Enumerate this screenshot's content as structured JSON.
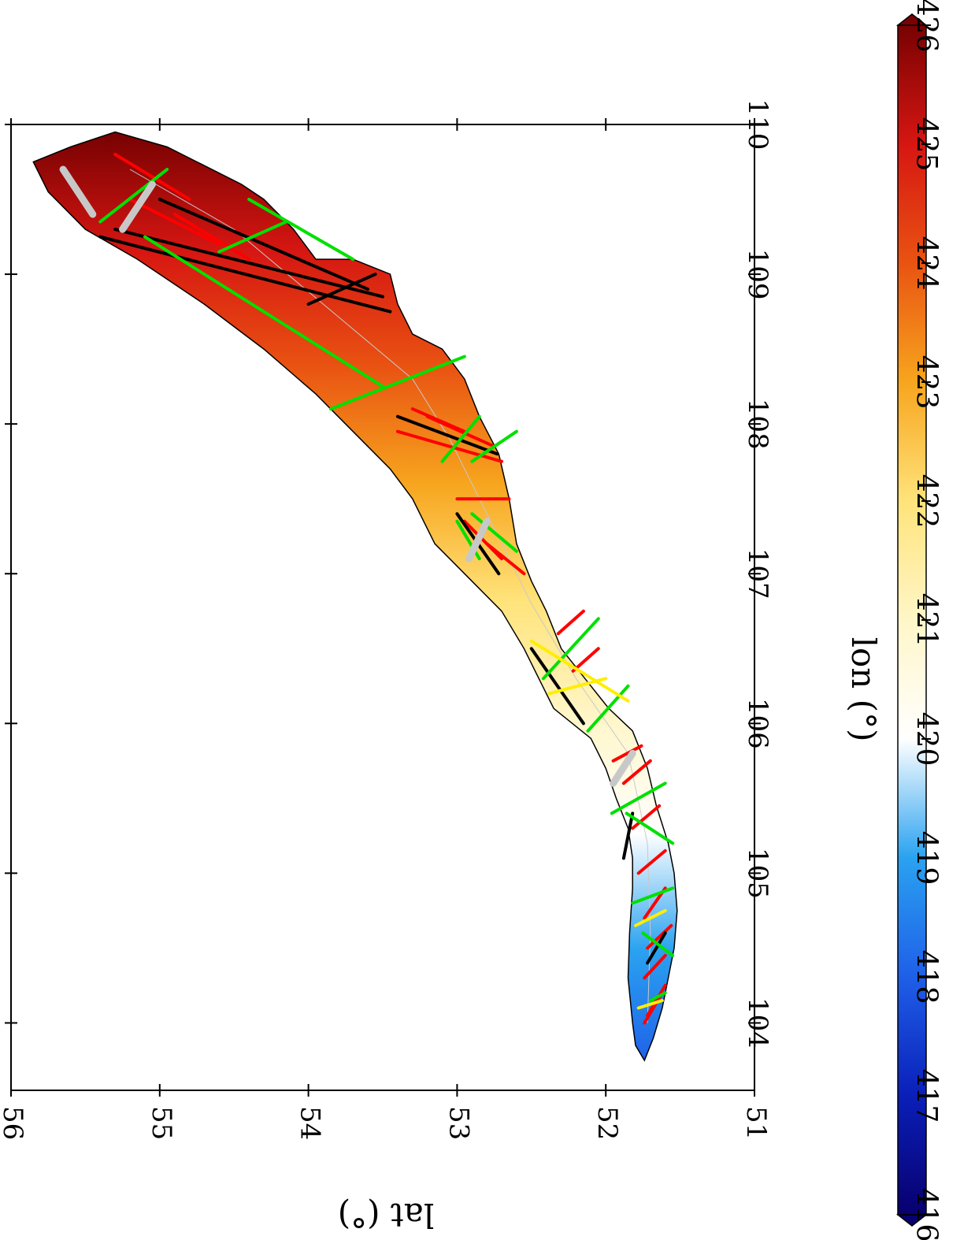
{
  "figure": {
    "x_axis_title": "lon (°)",
    "y_axis_title": "lat (°)"
  },
  "map_data": {
    "type": "map",
    "projection": "rotated 90° clockwise (longitude increases upward, latitude increases leftward)",
    "xlim": [
      103.55,
      110.0
    ],
    "ylim": [
      51.0,
      56.0
    ],
    "x_ticks": [
      "104",
      "105",
      "106",
      "107",
      "108",
      "109",
      "110"
    ],
    "y_ticks": [
      "51",
      "52",
      "53",
      "54",
      "55",
      "56"
    ],
    "colorbar": {
      "min": 416,
      "max": 426,
      "ticks": [
        "416",
        "417",
        "418",
        "419",
        "420",
        "421",
        "422",
        "423",
        "424",
        "425",
        "426"
      ],
      "extend": "both",
      "colormap": [
        "#08006e",
        "#0a1fb8",
        "#1f5fe8",
        "#2aa2f0",
        "#ffffff",
        "#fff6c8",
        "#ffe37a",
        "#f7a51e",
        "#e95312",
        "#d61612",
        "#780202"
      ]
    },
    "lake_outline": [
      [
        103.75,
        51.74
      ],
      [
        103.9,
        51.68
      ],
      [
        104.1,
        51.62
      ],
      [
        104.3,
        51.58
      ],
      [
        104.5,
        51.54
      ],
      [
        104.75,
        51.52
      ],
      [
        105.0,
        51.54
      ],
      [
        105.2,
        51.58
      ],
      [
        105.45,
        51.66
      ],
      [
        105.7,
        51.72
      ],
      [
        105.95,
        51.82
      ],
      [
        106.1,
        51.98
      ],
      [
        106.25,
        52.1
      ],
      [
        106.5,
        52.3
      ],
      [
        106.75,
        52.4
      ],
      [
        106.95,
        52.5
      ],
      [
        107.2,
        52.6
      ],
      [
        107.5,
        52.65
      ],
      [
        107.8,
        52.72
      ],
      [
        108.05,
        52.85
      ],
      [
        108.3,
        52.95
      ],
      [
        108.5,
        53.1
      ],
      [
        108.6,
        53.3
      ],
      [
        108.8,
        53.4
      ],
      [
        109.0,
        53.45
      ],
      [
        109.1,
        53.7
      ],
      [
        109.1,
        53.95
      ],
      [
        109.3,
        54.1
      ],
      [
        109.5,
        54.3
      ],
      [
        109.6,
        54.45
      ],
      [
        109.75,
        54.75
      ],
      [
        109.85,
        54.95
      ],
      [
        109.95,
        55.3
      ],
      [
        109.85,
        55.6
      ],
      [
        109.75,
        55.85
      ],
      [
        109.55,
        55.75
      ],
      [
        109.3,
        55.5
      ],
      [
        109.1,
        55.15
      ],
      [
        108.8,
        54.7
      ],
      [
        108.5,
        54.3
      ],
      [
        108.2,
        53.95
      ],
      [
        108.0,
        53.75
      ],
      [
        107.7,
        53.45
      ],
      [
        107.5,
        53.3
      ],
      [
        107.2,
        53.15
      ],
      [
        107.0,
        52.95
      ],
      [
        106.75,
        52.7
      ],
      [
        106.5,
        52.55
      ],
      [
        106.3,
        52.45
      ],
      [
        106.1,
        52.35
      ],
      [
        105.9,
        52.1
      ],
      [
        105.7,
        52.0
      ],
      [
        105.5,
        51.93
      ],
      [
        105.3,
        51.85
      ],
      [
        105.1,
        51.82
      ],
      [
        104.9,
        51.82
      ],
      [
        104.6,
        51.84
      ],
      [
        104.3,
        51.85
      ],
      [
        104.0,
        51.82
      ],
      [
        103.85,
        51.8
      ]
    ],
    "isolines": [
      [
        [
          104.0,
          51.72
        ],
        [
          104.6,
          51.7
        ],
        [
          105.2,
          51.72
        ],
        [
          105.8,
          51.85
        ],
        [
          106.3,
          52.2
        ],
        [
          106.8,
          52.5
        ],
        [
          107.4,
          52.8
        ],
        [
          107.9,
          53.05
        ]
      ],
      [
        [
          107.9,
          53.05
        ],
        [
          108.3,
          53.3
        ],
        [
          108.8,
          53.9
        ],
        [
          109.3,
          54.5
        ],
        [
          109.7,
          55.2
        ]
      ]
    ],
    "tracks": [
      {
        "color": "#ff0000",
        "points": [
          [
            104.0,
            51.74
          ],
          [
            104.2,
            51.62
          ]
        ]
      },
      {
        "color": "#ff0000",
        "points": [
          [
            104.05,
            51.72
          ],
          [
            104.25,
            51.6
          ]
        ]
      },
      {
        "color": "#ff0000",
        "points": [
          [
            104.3,
            51.74
          ],
          [
            104.45,
            51.6
          ]
        ]
      },
      {
        "color": "#ff0000",
        "points": [
          [
            104.5,
            51.72
          ],
          [
            104.65,
            51.56
          ]
        ]
      },
      {
        "color": "#ff0000",
        "points": [
          [
            104.7,
            51.74
          ],
          [
            104.9,
            51.6
          ]
        ]
      },
      {
        "color": "#ff0000",
        "points": [
          [
            105.0,
            51.78
          ],
          [
            105.15,
            51.6
          ]
        ]
      },
      {
        "color": "#ff0000",
        "points": [
          [
            105.3,
            51.82
          ],
          [
            105.45,
            51.64
          ]
        ]
      },
      {
        "color": "#ff0000",
        "points": [
          [
            105.6,
            51.88
          ],
          [
            105.75,
            51.7
          ]
        ]
      },
      {
        "color": "#ff0000",
        "points": [
          [
            105.75,
            51.95
          ],
          [
            105.85,
            51.76
          ]
        ]
      },
      {
        "color": "#ff0000",
        "points": [
          [
            106.35,
            52.22
          ],
          [
            106.5,
            52.05
          ]
        ]
      },
      {
        "color": "#ff0000",
        "points": [
          [
            106.6,
            52.32
          ],
          [
            106.75,
            52.15
          ]
        ]
      },
      {
        "color": "#ff0000",
        "points": [
          [
            107.0,
            52.55
          ],
          [
            107.2,
            52.8
          ]
        ]
      },
      {
        "color": "#ff0000",
        "points": [
          [
            107.1,
            52.7
          ],
          [
            107.35,
            52.95
          ]
        ]
      },
      {
        "color": "#ff0000",
        "points": [
          [
            107.5,
            52.65
          ],
          [
            107.5,
            53.0
          ]
        ]
      },
      {
        "color": "#ff0000",
        "points": [
          [
            107.75,
            52.7
          ],
          [
            107.95,
            53.4
          ]
        ]
      },
      {
        "color": "#ff0000",
        "points": [
          [
            107.85,
            52.75
          ],
          [
            108.05,
            53.2
          ]
        ]
      },
      {
        "color": "#ff0000",
        "points": [
          [
            107.95,
            52.95
          ],
          [
            108.1,
            53.3
          ]
        ]
      },
      {
        "color": "#ff0000",
        "points": [
          [
            109.1,
            54.4
          ],
          [
            109.4,
            54.9
          ]
        ]
      },
      {
        "color": "#ff0000",
        "points": [
          [
            109.2,
            54.6
          ],
          [
            109.5,
            55.2
          ]
        ]
      },
      {
        "color": "#ff0000",
        "points": [
          [
            109.5,
            54.8
          ],
          [
            109.8,
            55.3
          ]
        ]
      },
      {
        "color": "#000000",
        "points": [
          [
            104.4,
            51.72
          ],
          [
            104.6,
            51.6
          ]
        ]
      },
      {
        "color": "#000000",
        "points": [
          [
            105.1,
            51.88
          ],
          [
            105.4,
            51.82
          ]
        ]
      },
      {
        "color": "#000000",
        "points": [
          [
            106.0,
            52.15
          ],
          [
            106.5,
            52.5
          ]
        ]
      },
      {
        "color": "#000000",
        "points": [
          [
            107.0,
            52.72
          ],
          [
            107.4,
            53.0
          ]
        ]
      },
      {
        "color": "#000000",
        "points": [
          [
            107.8,
            52.73
          ],
          [
            108.05,
            53.4
          ]
        ]
      },
      {
        "color": "#000000",
        "points": [
          [
            108.75,
            53.45
          ],
          [
            109.25,
            55.4
          ]
        ]
      },
      {
        "color": "#000000",
        "points": [
          [
            108.85,
            53.5
          ],
          [
            109.3,
            55.3
          ]
        ]
      },
      {
        "color": "#000000",
        "points": [
          [
            108.8,
            54.0
          ],
          [
            109.0,
            53.55
          ]
        ]
      },
      {
        "color": "#000000",
        "points": [
          [
            108.9,
            53.6
          ],
          [
            109.5,
            55.0
          ]
        ]
      },
      {
        "color": "#00e000",
        "points": [
          [
            104.15,
            51.7
          ],
          [
            104.2,
            51.6
          ]
        ]
      },
      {
        "color": "#00e000",
        "points": [
          [
            104.45,
            51.55
          ],
          [
            104.6,
            51.75
          ]
        ]
      },
      {
        "color": "#00e000",
        "points": [
          [
            104.8,
            51.82
          ],
          [
            104.9,
            51.55
          ]
        ]
      },
      {
        "color": "#00e000",
        "points": [
          [
            105.2,
            51.55
          ],
          [
            105.4,
            51.86
          ]
        ]
      },
      {
        "color": "#00e000",
        "points": [
          [
            105.4,
            51.96
          ],
          [
            105.6,
            51.6
          ]
        ]
      },
      {
        "color": "#00e000",
        "points": [
          [
            105.95,
            52.12
          ],
          [
            106.25,
            51.85
          ]
        ]
      },
      {
        "color": "#00e000",
        "points": [
          [
            106.3,
            52.42
          ],
          [
            106.7,
            52.05
          ]
        ]
      },
      {
        "color": "#00e000",
        "points": [
          [
            107.1,
            52.85
          ],
          [
            107.35,
            53.0
          ]
        ]
      },
      {
        "color": "#00e000",
        "points": [
          [
            107.15,
            52.6
          ],
          [
            107.4,
            52.9
          ]
        ]
      },
      {
        "color": "#00e000",
        "points": [
          [
            107.75,
            52.9
          ],
          [
            107.95,
            52.6
          ]
        ]
      },
      {
        "color": "#00e000",
        "points": [
          [
            108.05,
            52.85
          ],
          [
            107.75,
            53.1
          ]
        ]
      },
      {
        "color": "#00e000",
        "points": [
          [
            108.1,
            53.85
          ],
          [
            108.45,
            52.95
          ]
        ]
      },
      {
        "color": "#00e000",
        "points": [
          [
            108.25,
            53.5
          ],
          [
            109.25,
            55.1
          ]
        ]
      },
      {
        "color": "#00e000",
        "points": [
          [
            109.1,
            53.7
          ],
          [
            109.5,
            54.4
          ]
        ]
      },
      {
        "color": "#00e000",
        "points": [
          [
            109.15,
            54.6
          ],
          [
            109.35,
            54.15
          ]
        ]
      },
      {
        "color": "#00e000",
        "points": [
          [
            109.35,
            55.4
          ],
          [
            109.7,
            54.95
          ]
        ]
      },
      {
        "color": "#ffee00",
        "points": [
          [
            104.1,
            51.78
          ],
          [
            104.15,
            51.62
          ]
        ]
      },
      {
        "color": "#ffee00",
        "points": [
          [
            104.65,
            51.8
          ],
          [
            104.75,
            51.6
          ]
        ]
      },
      {
        "color": "#ffee00",
        "points": [
          [
            106.15,
            51.85
          ],
          [
            106.55,
            52.5
          ]
        ]
      },
      {
        "color": "#ffee00",
        "points": [
          [
            106.2,
            52.38
          ],
          [
            106.3,
            52.0
          ]
        ]
      }
    ],
    "gray_segments": [
      [
        [
          105.6,
          51.95
        ],
        [
          105.8,
          51.82
        ]
      ],
      [
        [
          107.1,
          52.92
        ],
        [
          107.35,
          52.8
        ]
      ],
      [
        [
          109.4,
          55.45
        ],
        [
          109.7,
          55.65
        ]
      ],
      [
        [
          109.3,
          55.25
        ],
        [
          109.6,
          55.05
        ]
      ]
    ]
  }
}
